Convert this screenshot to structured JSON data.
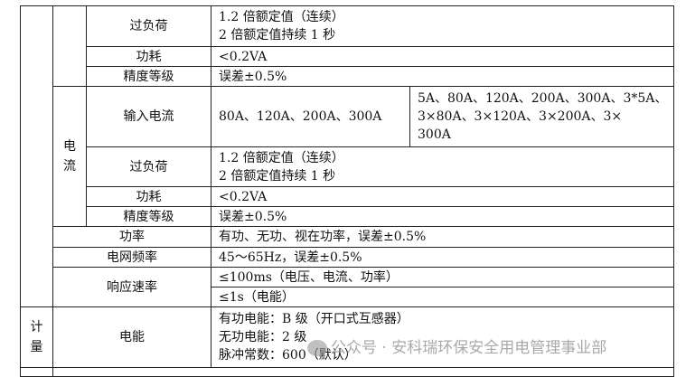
{
  "table": {
    "rows": {
      "v_overload": {
        "label": "过负荷",
        "lines": [
          "1.2 倍额定值（连续）",
          "2 倍额定值持续 1 秒"
        ]
      },
      "v_power": {
        "label": "功耗",
        "value": "<0.2VA"
      },
      "v_accuracy": {
        "label": "精度等级",
        "value": "误差±0.5%"
      },
      "current_group": "电流",
      "c_input": {
        "label": "输入电流",
        "value_a": "80A、120A、200A、300A",
        "value_b_lines": [
          "5A、80A、120A、200A、300A、3*5A、",
          "3×80A、3×120A、3×200A、3×",
          "300A"
        ]
      },
      "c_overload": {
        "label": "过负荷",
        "lines": [
          "1.2 倍额定值（连续）",
          "2 倍额定值持续 1 秒"
        ]
      },
      "c_power": {
        "label": "功耗",
        "value": "<0.2VA"
      },
      "c_accuracy": {
        "label": "精度等级",
        "value": "误差±0.5%"
      },
      "power": {
        "label": "功率",
        "value": "有功、无功、视在功率，误差±0.5%"
      },
      "frequency": {
        "label": "电网频率",
        "value": "45～65Hz，误差±0.5%"
      },
      "response": {
        "label": "响应速率",
        "values": [
          "≤100ms（电压、电流、功率）",
          "≤1s（电能）"
        ]
      },
      "metering_group": "计量",
      "energy": {
        "label": "电能",
        "lines": [
          "有功电能：B 级（开口式互感器）",
          "无功电能：2 级",
          "脉冲常数：600（默认）"
        ]
      }
    }
  },
  "watermark": {
    "icon": "wechat-icon",
    "text": "公众号 · 安科瑞环保安全用电管理事业部"
  }
}
